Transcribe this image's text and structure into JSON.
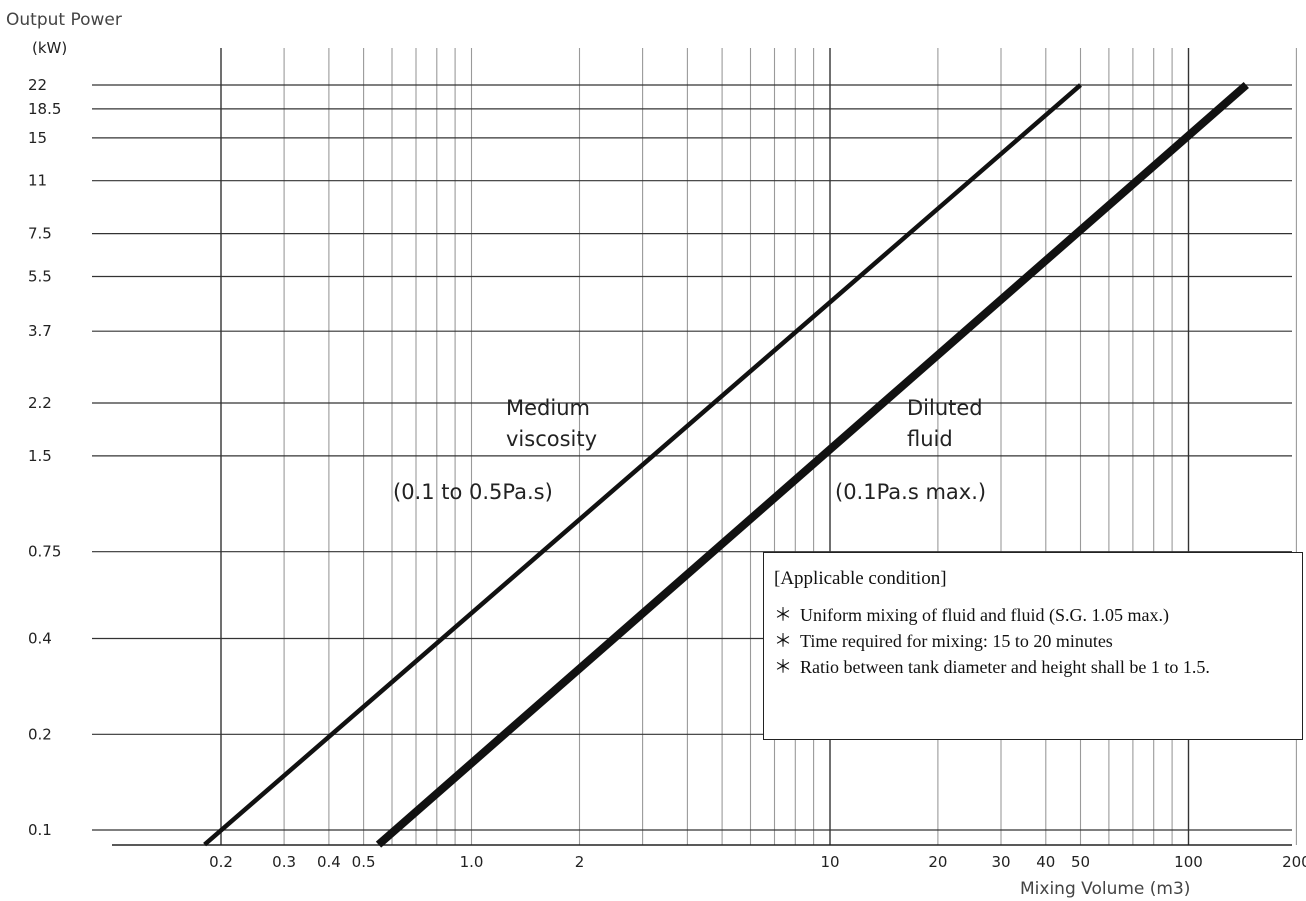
{
  "chart_data": {
    "type": "line",
    "ylabel": "Output Power",
    "yunit": "(kW)",
    "xlabel": "Mixing Volume (m3)",
    "xscale": "log",
    "yscale": "log",
    "xlim": [
      0.12,
      230
    ],
    "ylim": [
      0.088,
      26
    ],
    "grid": true,
    "yticks": [
      "22",
      "18.5",
      "15",
      "11",
      "7.5",
      "5.5",
      "3.7",
      "2.2",
      "1.5",
      "0.75",
      "0.4",
      "0.2",
      "0.1"
    ],
    "xticks": [
      "0.2",
      "0.3",
      "0.4",
      "0.5",
      "1.0",
      "2",
      "10",
      "20",
      "30",
      "40",
      "50",
      "100",
      "200"
    ],
    "series": [
      {
        "name": "Medium viscosity",
        "x": [
          0.18,
          50
        ],
        "y": [
          0.09,
          22
        ]
      },
      {
        "name": "Diluted fluid",
        "x": [
          0.55,
          145
        ],
        "y": [
          0.09,
          22
        ]
      }
    ],
    "annotations": [
      {
        "lines": [
          "Medium",
          "viscosity"
        ],
        "sub": "(0.1 to 0.5Pa.s)"
      },
      {
        "lines": [
          "Diluted",
          "fluid"
        ],
        "sub": "(0.1Pa.s max.)"
      }
    ]
  },
  "conditions": {
    "title": "[Applicable condition]",
    "bullet": "＊",
    "items": [
      "Uniform mixing of fluid and fluid (S.G. 1.05 max.)",
      "Time required for mixing: 15 to 20 minutes",
      "Ratio between tank diameter and height shall be 1 to 1.5."
    ]
  }
}
